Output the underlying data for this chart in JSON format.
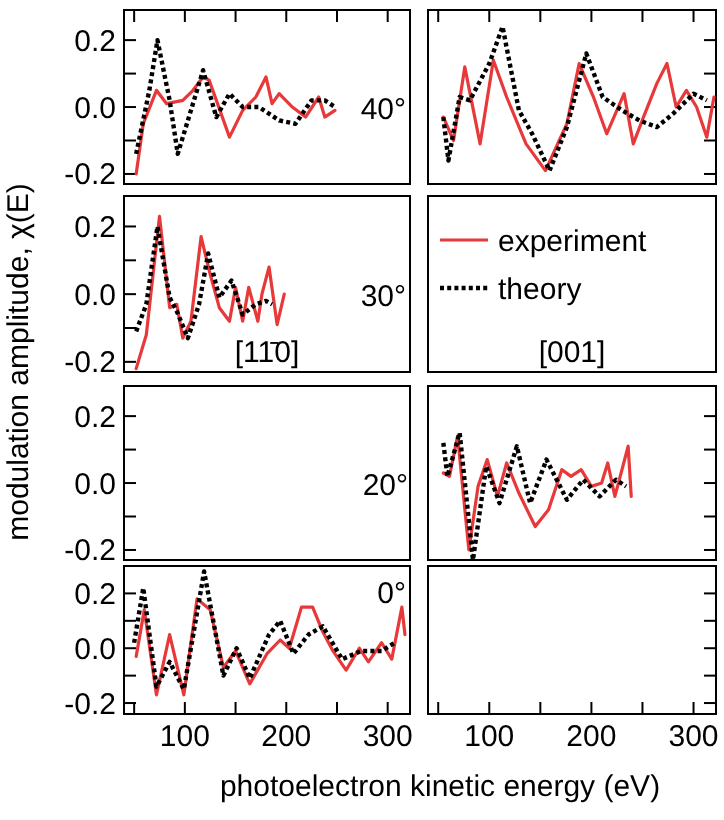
{
  "chart_data": [
    {
      "type": "line",
      "ylabel": "modulation amplitude, χ(E)",
      "xlim": [
        40,
        322
      ],
      "ylim": [
        -0.23,
        0.29
      ],
      "xticks": [
        {
          "value": 50,
          "label": null
        },
        {
          "value": 100,
          "label": null
        },
        {
          "value": 150,
          "label": null
        },
        {
          "value": 200,
          "label": null
        },
        {
          "value": 250,
          "label": null
        },
        {
          "value": 300,
          "label": null
        }
      ],
      "yticks": [
        {
          "value": -0.2,
          "label": "-0.2"
        },
        {
          "value": -0.1,
          "label": null
        },
        {
          "value": 0,
          "label": "0.0"
        },
        {
          "value": 0.1,
          "label": null
        },
        {
          "value": 0.2,
          "label": "0.2"
        }
      ],
      "tick_labels": "y",
      "annotations": [
        "40°"
      ],
      "series": [
        {
          "color": "#e8393a",
          "line_style": "solid",
          "x": [
            52,
            59,
            72,
            82,
            98,
            108,
            118,
            124,
            144,
            157,
            170,
            180,
            186,
            193,
            206,
            219,
            232,
            238,
            248
          ],
          "values": [
            -0.2,
            -0.05,
            0.05,
            0.01,
            0.02,
            0.05,
            0.09,
            0.08,
            -0.09,
            -0.01,
            0.03,
            0.09,
            0.01,
            0.04,
            0,
            -0.03,
            0.03,
            -0.03,
            -0.01
          ]
        },
        {
          "color": "#000000",
          "line_style": "dotted",
          "x": [
            52,
            65,
            73,
            85,
            93,
            104,
            118,
            131,
            144,
            157,
            173,
            193,
            209,
            225,
            238,
            248
          ],
          "values": [
            -0.14,
            0.05,
            0.2,
            0.02,
            -0.14,
            -0.03,
            0.11,
            -0.03,
            0.04,
            0,
            0,
            -0.04,
            -0.05,
            0.02,
            0.02,
            0
          ]
        }
      ]
    },
    {
      "type": "line",
      "xlim": [
        40,
        322
      ],
      "ylim": [
        -0.23,
        0.29
      ],
      "xticks": [
        {
          "value": 50,
          "label": null
        },
        {
          "value": 100,
          "label": null
        },
        {
          "value": 150,
          "label": null
        },
        {
          "value": 200,
          "label": null
        },
        {
          "value": 250,
          "label": null
        },
        {
          "value": 300,
          "label": null
        }
      ],
      "yticks": [
        {
          "value": -0.2,
          "label": null
        },
        {
          "value": -0.1,
          "label": null
        },
        {
          "value": 0,
          "label": null
        },
        {
          "value": 0.1,
          "label": null
        },
        {
          "value": 0.2,
          "label": null
        }
      ],
      "tick_labels": false,
      "series": [
        {
          "color": "#e8393a",
          "line_style": "solid",
          "x": [
            55,
            65,
            76,
            91,
            104,
            117,
            136,
            155,
            176,
            188,
            202,
            215,
            232,
            241,
            251,
            264,
            274,
            283,
            293,
            303,
            313,
            320
          ],
          "values": [
            -0.03,
            -0.1,
            0.12,
            -0.11,
            0.14,
            0.03,
            -0.11,
            -0.19,
            -0.05,
            0.13,
            0.03,
            -0.08,
            0.04,
            -0.11,
            -0.03,
            0.07,
            0.13,
            0,
            0.05,
            0,
            -0.09,
            0.03
          ]
        },
        {
          "color": "#000000",
          "line_style": "dotted",
          "x": [
            55,
            60,
            71,
            81,
            100,
            113,
            129,
            142,
            159,
            176,
            195,
            211,
            230,
            247,
            264,
            280,
            300,
            313
          ],
          "values": [
            -0.03,
            -0.16,
            0.03,
            0.02,
            0.13,
            0.24,
            -0.01,
            -0.08,
            -0.19,
            -0.06,
            0.16,
            0.03,
            -0.01,
            -0.04,
            -0.06,
            -0.02,
            0.04,
            0.02
          ]
        }
      ]
    },
    {
      "type": "line",
      "subtitle": "[11̄0]",
      "xlim": [
        40,
        322
      ],
      "ylim": [
        -0.23,
        0.29
      ],
      "yticks": [
        {
          "value": -0.2,
          "label": "-0.2"
        },
        {
          "value": -0.1,
          "label": null
        },
        {
          "value": 0,
          "label": "0.0"
        },
        {
          "value": 0.1,
          "label": null
        },
        {
          "value": 0.2,
          "label": "0.2"
        }
      ],
      "tick_labels": "y",
      "annotations": [
        "30°"
      ],
      "series": [
        {
          "color": "#e8393a",
          "line_style": "solid",
          "x": [
            52,
            62,
            75,
            85,
            92,
            98,
            106,
            116,
            124,
            134,
            144,
            150,
            157,
            163,
            172,
            176,
            183,
            191,
            198
          ],
          "values": [
            -0.22,
            -0.12,
            0.23,
            -0.04,
            -0.03,
            -0.13,
            -0.08,
            0.17,
            0.07,
            -0.04,
            -0.08,
            0.02,
            -0.08,
            0.02,
            -0.08,
            0,
            0.08,
            -0.09,
            0
          ]
        },
        {
          "color": "#000000",
          "line_style": "dotted",
          "x": [
            52,
            62,
            73,
            85,
            92,
            103,
            114,
            123,
            134,
            146,
            157,
            170,
            180,
            186
          ],
          "values": [
            -0.11,
            -0.03,
            0.2,
            -0.01,
            -0.05,
            -0.13,
            -0.03,
            0.12,
            -0.01,
            0.04,
            -0.06,
            -0.03,
            -0.02,
            -0.03
          ]
        }
      ]
    },
    {
      "type": "other",
      "subtitle": "[001]",
      "legend": "top right",
      "series": [
        {
          "name": "experiment",
          "color": "#e8393a",
          "line_style": "solid"
        },
        {
          "name": "theory",
          "color": "#000000",
          "line_style": "dotted"
        }
      ]
    },
    {
      "type": "line",
      "xlim": [
        40,
        322
      ],
      "ylim": [
        -0.23,
        0.29
      ],
      "yticks": [
        {
          "value": -0.2,
          "label": "-0.2"
        },
        {
          "value": -0.1,
          "label": null
        },
        {
          "value": 0,
          "label": "0.0"
        },
        {
          "value": 0.1,
          "label": null
        },
        {
          "value": 0.2,
          "label": "0.2"
        }
      ],
      "tick_labels": "y"
    },
    {
      "type": "line",
      "xlim": [
        40,
        322
      ],
      "ylim": [
        -0.23,
        0.29
      ],
      "yticks": [
        {
          "value": -0.2,
          "label": null
        },
        {
          "value": -0.1,
          "label": null
        },
        {
          "value": 0,
          "label": null
        },
        {
          "value": 0.1,
          "label": null
        },
        {
          "value": 0.2,
          "label": null
        }
      ],
      "tick_labels": false,
      "annotations": [
        "20°"
      ],
      "series": [
        {
          "color": "#e8393a",
          "line_style": "solid",
          "x": [
            55,
            61,
            69,
            80,
            89,
            98,
            108,
            117,
            129,
            145,
            158,
            171,
            180,
            190,
            200,
            210,
            216,
            223,
            236,
            239
          ],
          "values": [
            0.03,
            0.02,
            0.14,
            -0.2,
            -0.01,
            0.07,
            -0.04,
            0.06,
            -0.03,
            -0.13,
            -0.08,
            0.04,
            0.02,
            0.04,
            -0.01,
            0,
            0.06,
            -0.04,
            0.11,
            -0.04
          ]
        },
        {
          "color": "#000000",
          "line_style": "dotted",
          "x": [
            55,
            59,
            71,
            84,
            97,
            110,
            127,
            140,
            156,
            176,
            192,
            208,
            224,
            234
          ],
          "values": [
            0.12,
            0.02,
            0.15,
            -0.23,
            0.05,
            -0.06,
            0.11,
            -0.06,
            0.07,
            -0.05,
            0.01,
            -0.04,
            0.01,
            -0.01
          ]
        }
      ]
    },
    {
      "type": "line",
      "xlabel": "photoelectron kinetic energy (eV)",
      "xlim": [
        40,
        322
      ],
      "ylim": [
        -0.24,
        0.3
      ],
      "xticks": [
        {
          "value": 50,
          "label": null
        },
        {
          "value": 100,
          "label": "100"
        },
        {
          "value": 150,
          "label": null
        },
        {
          "value": 200,
          "label": "200"
        },
        {
          "value": 250,
          "label": null
        },
        {
          "value": 300,
          "label": "300"
        }
      ],
      "yticks": [
        {
          "value": -0.2,
          "label": "-0.2"
        },
        {
          "value": -0.1,
          "label": null
        },
        {
          "value": 0,
          "label": "0.0"
        },
        {
          "value": 0.1,
          "label": null
        },
        {
          "value": 0.2,
          "label": "0.2"
        }
      ],
      "annotations": [
        "0°"
      ],
      "series": [
        {
          "color": "#e8393a",
          "line_style": "solid",
          "x": [
            52,
            60,
            72,
            85,
            99,
            112,
            125,
            138,
            150,
            164,
            181,
            194,
            203,
            215,
            226,
            236,
            246,
            259,
            272,
            281,
            294,
            304,
            314,
            317
          ],
          "values": [
            -0.03,
            0.14,
            -0.17,
            0.05,
            -0.17,
            0.18,
            0.14,
            -0.07,
            -0.01,
            -0.13,
            -0.02,
            0.03,
            0,
            0.15,
            0.15,
            0.06,
            -0.01,
            -0.08,
            0,
            -0.05,
            0.02,
            -0.04,
            0.15,
            0.05
          ]
        },
        {
          "color": "#000000",
          "line_style": "dotted",
          "x": [
            50,
            59,
            72,
            85,
            99,
            119,
            138,
            151,
            164,
            183,
            194,
            207,
            222,
            236,
            255,
            274,
            294,
            307
          ],
          "values": [
            0.02,
            0.22,
            -0.14,
            -0.05,
            -0.15,
            0.28,
            -0.1,
            0,
            -0.11,
            0.05,
            0.1,
            -0.02,
            0.05,
            0.08,
            -0.04,
            -0.01,
            -0.01,
            0.02
          ]
        }
      ]
    },
    {
      "type": "line",
      "xlim": [
        40,
        322
      ],
      "ylim": [
        -0.24,
        0.3
      ],
      "xticks": [
        {
          "value": 50,
          "label": null
        },
        {
          "value": 100,
          "label": "100"
        },
        {
          "value": 150,
          "label": null
        },
        {
          "value": 200,
          "label": "200"
        },
        {
          "value": 250,
          "label": null
        },
        {
          "value": 300,
          "label": "300"
        }
      ],
      "yticks": [
        {
          "value": -0.2,
          "label": null
        },
        {
          "value": -0.1,
          "label": null
        },
        {
          "value": 0,
          "label": null
        },
        {
          "value": 0.1,
          "label": null
        },
        {
          "value": 0.2,
          "label": null
        }
      ],
      "tick_labels": "x"
    }
  ]
}
